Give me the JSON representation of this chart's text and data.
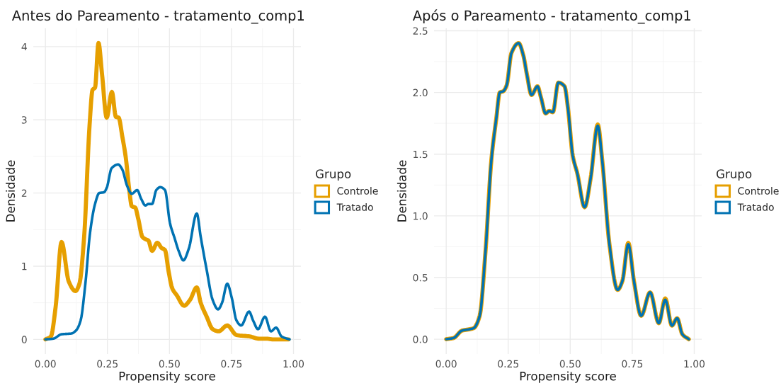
{
  "chart_data": [
    {
      "type": "line",
      "title": "Antes do Pareamento - tratamento_comp1",
      "xlabel": "Propensity score",
      "ylabel": "Densidade",
      "legend_title": "Grupo",
      "legend": "right",
      "grid": true,
      "xlim": [
        -0.049,
        1.03
      ],
      "ylim": [
        -0.2,
        4.25
      ],
      "xticks": [
        {
          "value": 0,
          "label": "0.00"
        },
        {
          "value": 0.25,
          "label": "0.25"
        },
        {
          "value": 0.5,
          "label": "0.50"
        },
        {
          "value": 0.75,
          "label": "0.75"
        },
        {
          "value": 1,
          "label": "1.00"
        }
      ],
      "yticks": [
        0,
        1,
        2,
        3,
        4
      ],
      "series": [
        {
          "name": "Controle",
          "color": "#e69f00",
          "x": [
            0,
            0.022,
            0.041,
            0.065,
            0.094,
            0.121,
            0.137,
            0.156,
            0.178,
            0.19,
            0.2,
            0.214,
            0.228,
            0.247,
            0.268,
            0.284,
            0.295,
            0.31,
            0.324,
            0.338,
            0.348,
            0.362,
            0.374,
            0.391,
            0.403,
            0.415,
            0.43,
            0.451,
            0.468,
            0.482,
            0.497,
            0.511,
            0.53,
            0.559,
            0.583,
            0.61,
            0.626,
            0.65,
            0.674,
            0.698,
            0.733,
            0.77,
            0.823,
            0.861,
            0.89,
            0.918,
            0.98
          ],
          "values": [
            0,
            0.04,
            0.44,
            1.33,
            0.79,
            0.66,
            0.76,
            1.4,
            2.93,
            3.41,
            3.44,
            4.05,
            3.63,
            3.03,
            3.38,
            3.04,
            3.03,
            2.77,
            2.48,
            2.04,
            1.82,
            1.8,
            1.65,
            1.4,
            1.37,
            1.35,
            1.21,
            1.32,
            1.25,
            1.22,
            0.92,
            0.7,
            0.6,
            0.46,
            0.54,
            0.71,
            0.5,
            0.31,
            0.14,
            0.11,
            0.19,
            0.06,
            0.04,
            0.01,
            0.01,
            0,
            0
          ]
        },
        {
          "name": "Tratado",
          "color": "#0072b2",
          "x": [
            0,
            0.032,
            0.065,
            0.104,
            0.123,
            0.142,
            0.161,
            0.18,
            0.2,
            0.217,
            0.236,
            0.247,
            0.267,
            0.293,
            0.31,
            0.329,
            0.348,
            0.37,
            0.386,
            0.403,
            0.415,
            0.43,
            0.447,
            0.463,
            0.482,
            0.502,
            0.521,
            0.537,
            0.556,
            0.578,
            0.61,
            0.626,
            0.65,
            0.674,
            0.696,
            0.712,
            0.733,
            0.751,
            0.77,
            0.789,
            0.821,
            0.837,
            0.857,
            0.885,
            0.909,
            0.93,
            0.952,
            0.984
          ],
          "values": [
            0,
            0.01,
            0.07,
            0.08,
            0.12,
            0.26,
            0.76,
            1.46,
            1.85,
            2.0,
            2.01,
            2.07,
            2.34,
            2.39,
            2.32,
            2.1,
            1.99,
            2.04,
            1.92,
            1.83,
            1.85,
            1.85,
            2.04,
            2.08,
            2.04,
            1.59,
            1.38,
            1.21,
            1.08,
            1.24,
            1.72,
            1.4,
            0.95,
            0.54,
            0.41,
            0.5,
            0.76,
            0.57,
            0.26,
            0.19,
            0.38,
            0.26,
            0.14,
            0.31,
            0.11,
            0.16,
            0.04,
            0
          ]
        }
      ]
    },
    {
      "type": "line",
      "title": "Após o Pareamento - tratamento_comp1",
      "xlabel": "Propensity score",
      "ylabel": "Densidade",
      "legend_title": "Grupo",
      "legend": "right",
      "grid": true,
      "xlim": [
        -0.049,
        1.03
      ],
      "ylim": [
        -0.12,
        2.52
      ],
      "xticks": [
        {
          "value": 0,
          "label": "0.00"
        },
        {
          "value": 0.25,
          "label": "0.25"
        },
        {
          "value": 0.5,
          "label": "0.50"
        },
        {
          "value": 0.75,
          "label": "0.75"
        },
        {
          "value": 1,
          "label": "1.00"
        }
      ],
      "yticks": [
        {
          "value": 0,
          "label": "0.0"
        },
        {
          "value": 0.5,
          "label": "0.5"
        },
        {
          "value": 1,
          "label": "1.0"
        },
        {
          "value": 1.5,
          "label": "1.5"
        },
        {
          "value": 2,
          "label": "2.0"
        },
        {
          "value": 2.5,
          "label": "2.5"
        }
      ],
      "series": [
        {
          "name": "Controle",
          "color": "#e69f00",
          "x": [
            0,
            0.03,
            0.064,
            0.092,
            0.111,
            0.135,
            0.158,
            0.182,
            0.202,
            0.216,
            0.23,
            0.244,
            0.263,
            0.292,
            0.311,
            0.325,
            0.344,
            0.368,
            0.382,
            0.401,
            0.415,
            0.43,
            0.452,
            0.477,
            0.491,
            0.51,
            0.529,
            0.558,
            0.582,
            0.611,
            0.629,
            0.658,
            0.691,
            0.71,
            0.734,
            0.757,
            0.786,
            0.822,
            0.857,
            0.883,
            0.91,
            0.931,
            0.952,
            0.978
          ],
          "values": [
            0,
            0.01,
            0.07,
            0.08,
            0.09,
            0.19,
            0.7,
            1.45,
            1.79,
            2.0,
            2.01,
            2.06,
            2.32,
            2.4,
            2.3,
            2.15,
            1.98,
            2.05,
            1.96,
            1.83,
            1.85,
            1.84,
            2.08,
            2.05,
            1.87,
            1.49,
            1.34,
            1.07,
            1.3,
            1.74,
            1.45,
            0.77,
            0.4,
            0.47,
            0.78,
            0.47,
            0.19,
            0.38,
            0.13,
            0.33,
            0.11,
            0.17,
            0.04,
            0
          ]
        },
        {
          "name": "Tratado",
          "color": "#0072b2",
          "x": [
            0,
            0.03,
            0.064,
            0.092,
            0.111,
            0.135,
            0.158,
            0.182,
            0.202,
            0.216,
            0.23,
            0.244,
            0.263,
            0.292,
            0.311,
            0.325,
            0.344,
            0.368,
            0.382,
            0.401,
            0.415,
            0.43,
            0.452,
            0.477,
            0.491,
            0.51,
            0.529,
            0.558,
            0.582,
            0.611,
            0.629,
            0.658,
            0.691,
            0.71,
            0.734,
            0.757,
            0.786,
            0.822,
            0.857,
            0.883,
            0.91,
            0.931,
            0.952,
            0.978
          ],
          "values": [
            0,
            0.01,
            0.07,
            0.08,
            0.09,
            0.19,
            0.7,
            1.45,
            1.79,
            2.0,
            2.01,
            2.06,
            2.32,
            2.4,
            2.3,
            2.15,
            1.98,
            2.05,
            1.96,
            1.83,
            1.85,
            1.84,
            2.08,
            2.05,
            1.87,
            1.49,
            1.34,
            1.07,
            1.3,
            1.73,
            1.45,
            0.77,
            0.4,
            0.47,
            0.77,
            0.47,
            0.19,
            0.38,
            0.13,
            0.32,
            0.11,
            0.17,
            0.04,
            0
          ]
        }
      ]
    }
  ]
}
